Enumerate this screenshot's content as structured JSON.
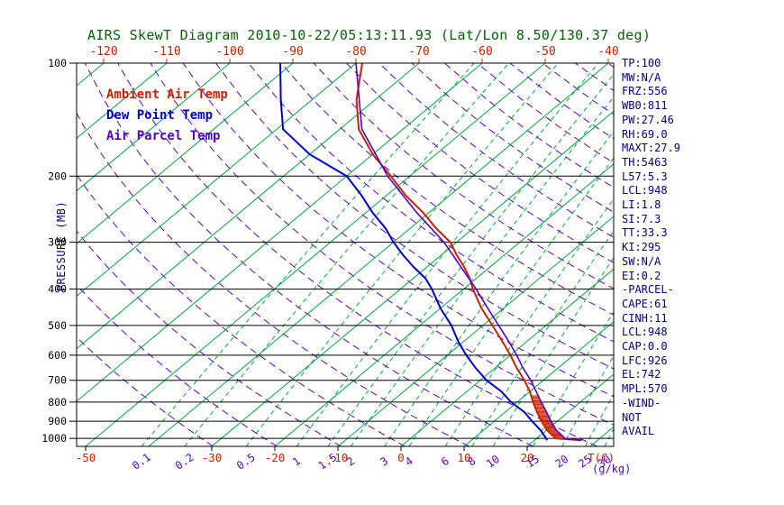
{
  "title": "AIRS SkewT Diagram 2010-10-22/05:13:11.93 (Lat/Lon 8.50/130.37 deg)",
  "colors": {
    "ambient": "#cc2200",
    "dewpoint": "#0000cc",
    "parcel": "#5500cc",
    "isotherm": "#00a843",
    "mixing_line": "#00a843",
    "dry_adiabat": "#5500cc",
    "pressure_line": "#000000",
    "temp_label": "#cc2200",
    "mix_label": "#5500cc",
    "stats_text": "#000080",
    "title_text": "#006400"
  },
  "legend": [
    {
      "label": "Ambient Air Temp",
      "color_key": "ambient"
    },
    {
      "label": "Dew Point Temp",
      "color_key": "dewpoint"
    },
    {
      "label": "Air Parcel Temp",
      "color_key": "parcel"
    }
  ],
  "axes": {
    "pressure_label": "PRESSURE (MB)",
    "pressure_ticks": [
      100,
      200,
      300,
      400,
      500,
      600,
      700,
      800,
      900,
      1000
    ],
    "top_temp_ticks": [
      -120,
      -110,
      -100,
      -90,
      -80,
      -70,
      -60,
      -50,
      -40
    ],
    "bottom_temp_ticks": [
      -50,
      -30,
      -20,
      -10,
      0,
      10,
      20
    ],
    "temp_unit": "T(C)",
    "mix_unit": "(g/kg)"
  },
  "stats": [
    "TP:100",
    "MW:N/A",
    "FRZ:556",
    "WB0:811",
    "PW:27.46",
    "RH:69.0",
    "MAXT:27.9",
    "TH:5463",
    "L57:5.3",
    "LCL:948",
    "LI:1.8",
    "SI:7.3",
    "TT:33.3",
    "KI:295",
    "SW:N/A",
    "EI:0.2",
    "-PARCEL-",
    "CAPE:61",
    "CINH:11",
    "LCL:948",
    "CAP:0.0",
    "LFC:926",
    "EL:742",
    "MPL:570",
    "-WIND-",
    "NOT",
    "AVAIL"
  ],
  "chart_data": {
    "type": "line",
    "title": "AIRS SkewT Diagram 2010-10-22/05:13:11.93 (Lat/Lon 8.50/130.37 deg)",
    "x_axis_label": "T(C)",
    "y_axis_label": "PRESSURE (MB)",
    "y_scale": "log",
    "y_range_mb": [
      100,
      1050
    ],
    "skew": "isotherms slant right ~45 deg",
    "isotherms_c": {
      "start": -160,
      "end": 40,
      "step": 10
    },
    "mixing_ratios_gkg": [
      0.1,
      0.2,
      0.5,
      1,
      1.5,
      2,
      3,
      4,
      6,
      8,
      10,
      15,
      20,
      25,
      30,
      40
    ],
    "dry_adiabats_k": {
      "start": 240,
      "end": 500,
      "step": 10
    },
    "series": [
      {
        "name": "Ambient Air Temp",
        "color_key": "ambient",
        "points_p_t": [
          [
            100,
            -79
          ],
          [
            125,
            -73
          ],
          [
            150,
            -67
          ],
          [
            175,
            -60
          ],
          [
            200,
            -53
          ],
          [
            225,
            -47
          ],
          [
            250,
            -41
          ],
          [
            275,
            -36
          ],
          [
            300,
            -31
          ],
          [
            325,
            -27.5
          ],
          [
            350,
            -24
          ],
          [
            375,
            -21
          ],
          [
            400,
            -18.5
          ],
          [
            450,
            -13.5
          ],
          [
            500,
            -8.5
          ],
          [
            550,
            -4
          ],
          [
            600,
            0
          ],
          [
            650,
            3.5
          ],
          [
            700,
            7
          ],
          [
            750,
            10
          ],
          [
            800,
            12.5
          ],
          [
            850,
            15
          ],
          [
            900,
            17.5
          ],
          [
            950,
            20
          ],
          [
            1000,
            23
          ],
          [
            1012,
            27.5
          ]
        ]
      },
      {
        "name": "Dew Point Temp",
        "color_key": "dewpoint",
        "points_p_t": [
          [
            100,
            -92
          ],
          [
            125,
            -85
          ],
          [
            150,
            -79
          ],
          [
            175,
            -70
          ],
          [
            200,
            -60
          ],
          [
            225,
            -54
          ],
          [
            250,
            -49
          ],
          [
            275,
            -44
          ],
          [
            300,
            -40
          ],
          [
            325,
            -36
          ],
          [
            350,
            -32
          ],
          [
            375,
            -28
          ],
          [
            400,
            -25
          ],
          [
            450,
            -20
          ],
          [
            500,
            -15
          ],
          [
            550,
            -11
          ],
          [
            600,
            -7
          ],
          [
            650,
            -3
          ],
          [
            700,
            1
          ],
          [
            750,
            5.5
          ],
          [
            800,
            9
          ],
          [
            850,
            13
          ],
          [
            900,
            16
          ],
          [
            950,
            19
          ],
          [
            1000,
            21.5
          ],
          [
            1012,
            22
          ]
        ]
      },
      {
        "name": "Air Parcel Temp",
        "color_key": "parcel",
        "points_p_t": [
          [
            100,
            -80
          ],
          [
            150,
            -66.5
          ],
          [
            200,
            -53.5
          ],
          [
            250,
            -42
          ],
          [
            300,
            -32
          ],
          [
            350,
            -24.5
          ],
          [
            400,
            -18
          ],
          [
            450,
            -12.5
          ],
          [
            500,
            -7.5
          ],
          [
            550,
            -3
          ],
          [
            600,
            1
          ],
          [
            650,
            4.5
          ],
          [
            700,
            8
          ],
          [
            750,
            11
          ],
          [
            800,
            13.8
          ],
          [
            850,
            16.5
          ],
          [
            900,
            19
          ],
          [
            950,
            21.5
          ],
          [
            1000,
            24.5
          ],
          [
            1012,
            27.5
          ]
        ]
      }
    ],
    "cape_hatch_p_range": [
      770,
      1005
    ]
  }
}
